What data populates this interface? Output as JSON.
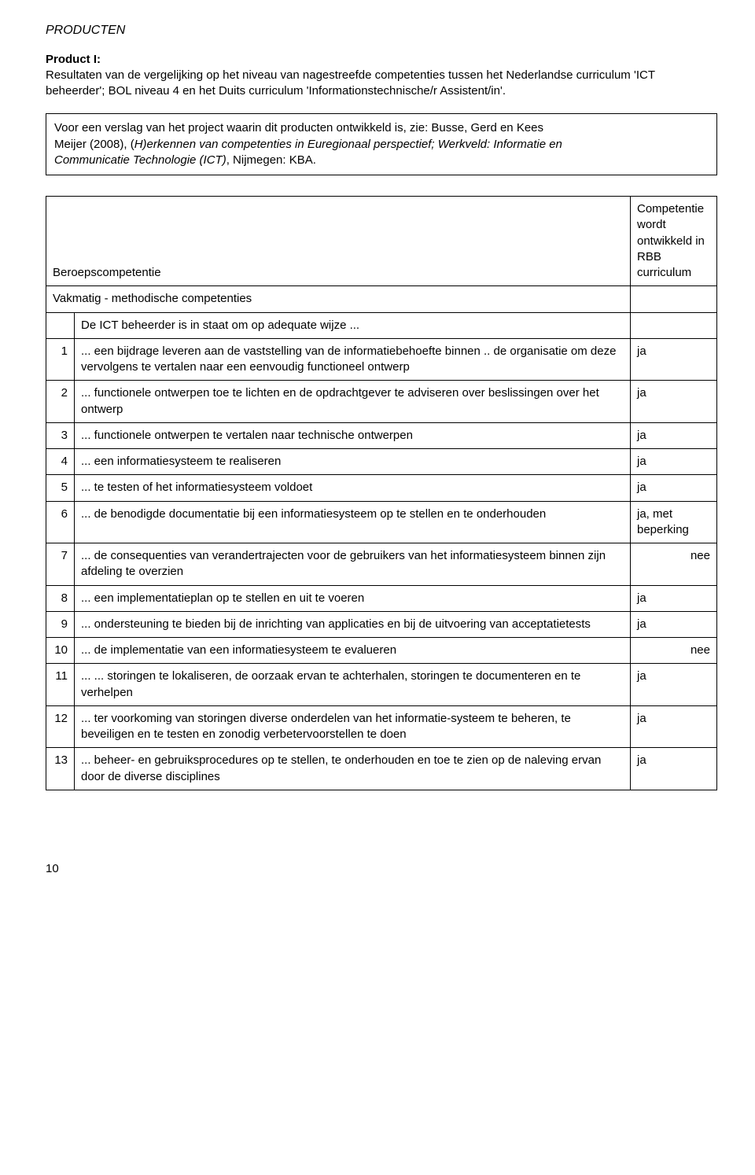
{
  "section_heading": "PRODUCTEN",
  "product_title": "Product I:",
  "product_desc": "Resultaten van de vergelijking op het niveau van nagestreefde competenties tussen het Nederlandse curriculum 'ICT beheerder'; BOL niveau 4 en het Duits curriculum 'Informationstechnische/r Assistent/in'.",
  "box_line1": "Voor een verslag van het project waarin dit producten ontwikkeld is, zie: Busse, Gerd en Kees",
  "box_line2a": "Meijer (2008), (",
  "box_line2b": "H)erkennen van competenties in Euregionaal perspectief; Werkveld: Informatie en",
  "box_line3a": "Communicatie Technologie (ICT)",
  "box_line3b": ", Nijmegen: KBA.",
  "header_left": "Beroepscompetentie",
  "header_right": "Competentie wordt ontwikkeld in RBB curriculum",
  "subheader": "Vakmatig - methodische competenties",
  "intro_row": "De ICT beheerder is in staat om op adequate wijze ...",
  "rows": [
    {
      "n": "1",
      "text": "... een bijdrage leveren aan de vaststelling van de informatiebehoefte binnen .. de organisatie om deze vervolgens te vertalen naar een eenvoudig functioneel ontwerp",
      "val": "ja",
      "align": "left"
    },
    {
      "n": "2",
      "text": "... functionele ontwerpen toe te lichten en de opdrachtgever te adviseren over beslissingen over het ontwerp",
      "val": "ja",
      "align": "left"
    },
    {
      "n": "3",
      "text": "... functionele ontwerpen te vertalen naar technische ontwerpen",
      "val": "ja",
      "align": "left"
    },
    {
      "n": "4",
      "text": "... een informatiesysteem te realiseren",
      "val": "ja",
      "align": "left"
    },
    {
      "n": "5",
      "text": "... te testen of het informatiesysteem voldoet",
      "val": "ja",
      "align": "left"
    },
    {
      "n": "6",
      "text": "... de benodigde documentatie bij een informatiesysteem op te stellen en te onderhouden",
      "val": "ja, met beperking",
      "align": "left"
    },
    {
      "n": "7",
      "text": "... de consequenties van verandertrajecten voor de gebruikers van het informatiesysteem binnen zijn afdeling te overzien",
      "val": "nee",
      "align": "right"
    },
    {
      "n": "8",
      "text": "... een implementatieplan op te stellen en uit te voeren",
      "val": "ja",
      "align": "left"
    },
    {
      "n": "9",
      "text": "... ondersteuning te bieden bij de inrichting van applicaties en bij de uitvoering van acceptatietests",
      "val": "ja",
      "align": "left"
    },
    {
      "n": "10",
      "text": "... de implementatie van een informatiesysteem te evalueren",
      "val": "nee",
      "align": "right"
    },
    {
      "n": "11",
      "text": "... ... storingen te lokaliseren, de oorzaak ervan te achterhalen, storingen te documenteren en te verhelpen",
      "val": "ja",
      "align": "left"
    },
    {
      "n": "12",
      "text": "... ter voorkoming van storingen diverse onderdelen van het informatie-systeem te beheren, te beveiligen en te testen en zonodig verbetervoorstellen te doen",
      "val": "ja",
      "align": "left"
    },
    {
      "n": "13",
      "text": "... beheer- en gebruiksprocedures op te stellen, te onderhouden en toe te zien op de naleving ervan door de diverse disciplines",
      "val": "ja",
      "align": "left"
    }
  ],
  "page_number": "10",
  "colors": {
    "text": "#000000",
    "bg": "#ffffff",
    "border": "#000000"
  }
}
